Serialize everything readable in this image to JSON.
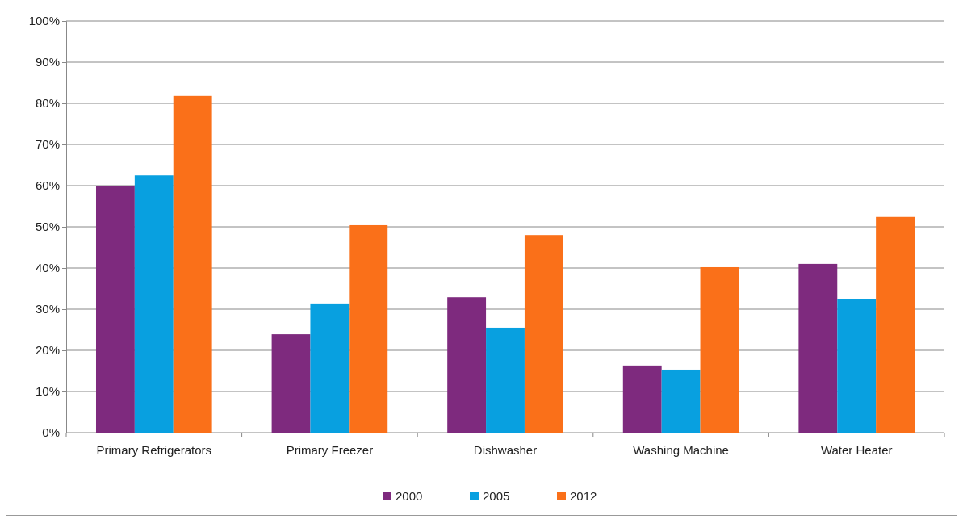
{
  "chart_data": {
    "type": "bar",
    "categories": [
      "Primary Refrigerators",
      "Primary Freezer",
      "Dishwasher",
      "Washing Machine",
      "Water Heater"
    ],
    "series": [
      {
        "name": "2000",
        "color": "#7e2a7e",
        "values": [
          60,
          23.9,
          32.9,
          16.3,
          41
        ]
      },
      {
        "name": "2005",
        "color": "#08a0e0",
        "values": [
          62.5,
          31.2,
          25.5,
          15.3,
          32.5
        ]
      },
      {
        "name": "2012",
        "color": "#fa7019",
        "values": [
          81.8,
          50.4,
          48,
          40.2,
          52.4
        ]
      }
    ],
    "ylim": [
      0,
      100
    ],
    "yticks": [
      {
        "value": 0,
        "label": "0%"
      },
      {
        "value": 10,
        "label": "10%"
      },
      {
        "value": 20,
        "label": "20%"
      },
      {
        "value": 30,
        "label": "30%"
      },
      {
        "value": 40,
        "label": "40%"
      },
      {
        "value": 50,
        "label": "50%"
      },
      {
        "value": 60,
        "label": "60%"
      },
      {
        "value": 70,
        "label": "70%"
      },
      {
        "value": 80,
        "label": "80%"
      },
      {
        "value": 90,
        "label": "90%"
      },
      {
        "value": 100,
        "label": "100%"
      }
    ],
    "grid": "y",
    "legend": "bottom"
  }
}
